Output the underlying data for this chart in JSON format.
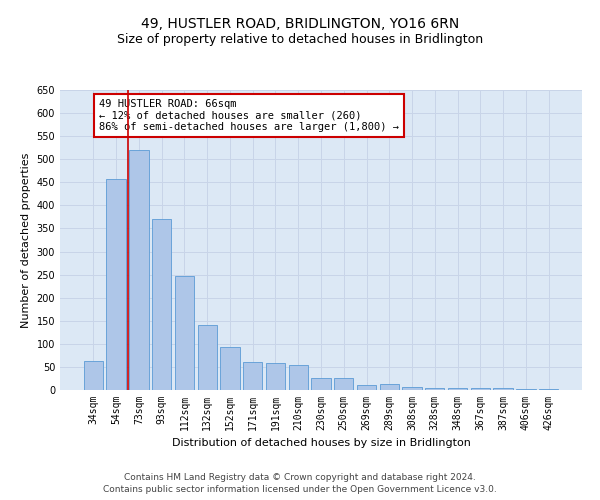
{
  "title": "49, HUSTLER ROAD, BRIDLINGTON, YO16 6RN",
  "subtitle": "Size of property relative to detached houses in Bridlington",
  "xlabel": "Distribution of detached houses by size in Bridlington",
  "ylabel": "Number of detached properties",
  "categories": [
    "34sqm",
    "54sqm",
    "73sqm",
    "93sqm",
    "112sqm",
    "132sqm",
    "152sqm",
    "171sqm",
    "191sqm",
    "210sqm",
    "230sqm",
    "250sqm",
    "269sqm",
    "289sqm",
    "308sqm",
    "328sqm",
    "348sqm",
    "367sqm",
    "387sqm",
    "406sqm",
    "426sqm"
  ],
  "values": [
    62,
    458,
    520,
    370,
    248,
    140,
    93,
    60,
    58,
    55,
    25,
    25,
    10,
    12,
    6,
    5,
    5,
    5,
    4,
    3,
    2
  ],
  "bar_color": "#aec6e8",
  "bar_edge_color": "#5b9bd5",
  "grid_color": "#c8d4e8",
  "background_color": "#dce8f5",
  "red_line_x": 1.5,
  "annotation_box_text": "49 HUSTLER ROAD: 66sqm\n← 12% of detached houses are smaller (260)\n86% of semi-detached houses are larger (1,800) →",
  "annotation_box_color": "#ffffff",
  "annotation_box_edge_color": "#cc0000",
  "ylim": [
    0,
    650
  ],
  "yticks": [
    0,
    50,
    100,
    150,
    200,
    250,
    300,
    350,
    400,
    450,
    500,
    550,
    600,
    650
  ],
  "footer_line1": "Contains HM Land Registry data © Crown copyright and database right 2024.",
  "footer_line2": "Contains public sector information licensed under the Open Government Licence v3.0.",
  "title_fontsize": 10,
  "subtitle_fontsize": 9,
  "axis_label_fontsize": 8,
  "tick_fontsize": 7,
  "footer_fontsize": 6.5,
  "annot_fontsize": 7.5
}
